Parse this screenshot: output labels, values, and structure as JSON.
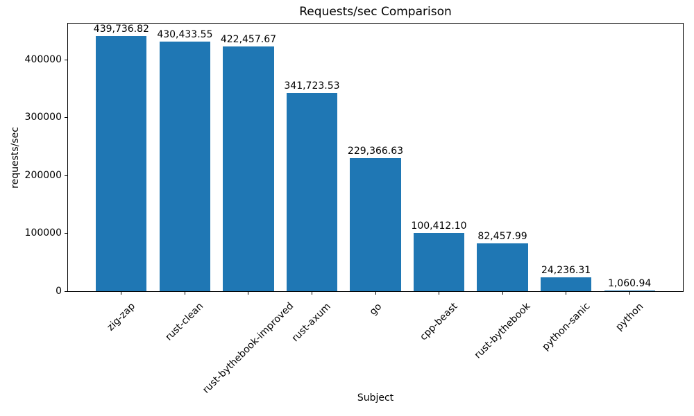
{
  "figure": {
    "background": "#ffffff"
  },
  "chart_data": {
    "type": "bar",
    "title": "Requests/sec Comparison",
    "xlabel": "Subject",
    "ylabel": "requests/sec",
    "categories": [
      "zig-zap",
      "rust-clean",
      "rust-bythebook-improved",
      "rust-axum",
      "go",
      "cpp-beast",
      "rust-bythebook",
      "python-sanic",
      "python"
    ],
    "values": [
      439736.82,
      430433.55,
      422457.67,
      341723.53,
      229366.63,
      100412.1,
      82457.99,
      24236.31,
      1060.94
    ],
    "value_labels": [
      "439,736.82",
      "430,433.55",
      "422,457.67",
      "341,723.53",
      "229,366.63",
      "100,412.10",
      "82,457.99",
      "24,236.31",
      "1,060.94"
    ],
    "yticks": [
      0,
      100000,
      200000,
      300000,
      400000
    ],
    "ytick_labels": [
      "0",
      "100000",
      "200000",
      "300000",
      "400000"
    ],
    "ylim": [
      0,
      461723.66
    ],
    "x_tick_rotation_deg": 45,
    "bar_color": "#1f77b4",
    "axis_color": "#000000",
    "text_color": "#000000",
    "grid": false,
    "legend_position": "none"
  }
}
